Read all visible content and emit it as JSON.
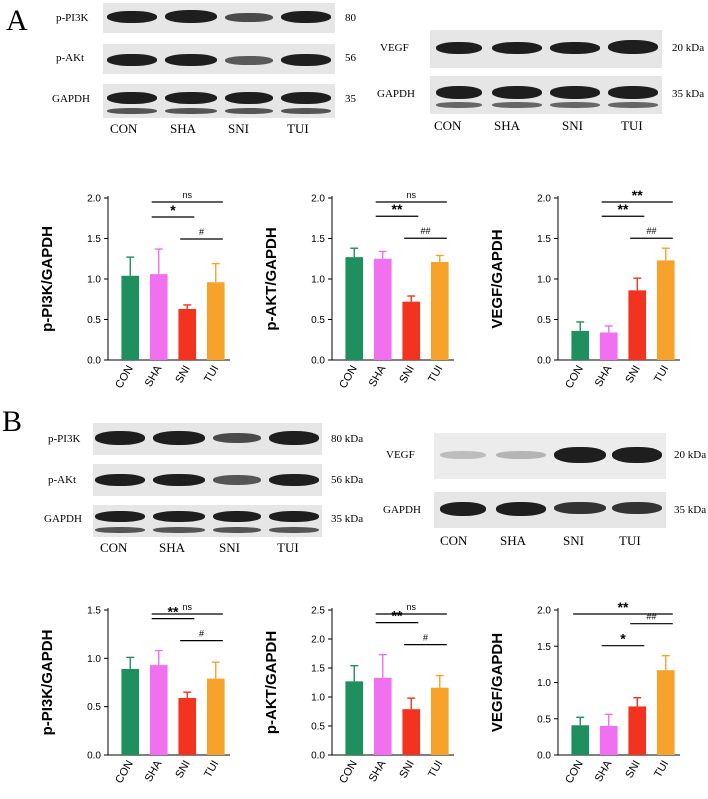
{
  "panelA": {
    "letter": "A",
    "blot_left": {
      "rows": [
        {
          "label": "p-PI3K",
          "size": "80"
        },
        {
          "label": "p-AKt",
          "size": "56"
        },
        {
          "label": "GAPDH",
          "size": "35"
        }
      ],
      "lanes": [
        "CON",
        "SHA",
        "SNI",
        "TUI"
      ]
    },
    "blot_right": {
      "rows": [
        {
          "label": "VEGF",
          "size": "20 kDa"
        },
        {
          "label": "GAPDH",
          "size": "35 kDa"
        }
      ],
      "lanes": [
        "CON",
        "SHA",
        "SNI",
        "TUI"
      ]
    }
  },
  "panelB": {
    "letter": "B",
    "blot_left": {
      "rows": [
        {
          "label": "p-PI3K",
          "size": "80 kDa"
        },
        {
          "label": "p-AKt",
          "size": "56 kDa"
        },
        {
          "label": "GAPDH",
          "size": "35 kDa"
        }
      ],
      "lanes": [
        "CON",
        "SHA",
        "SNI",
        "TUI"
      ]
    },
    "blot_right": {
      "rows": [
        {
          "label": "VEGF",
          "size": "20 kDa"
        },
        {
          "label": "GAPDH",
          "size": "35 kDa"
        }
      ],
      "lanes": [
        "CON",
        "SHA",
        "SNI",
        "TUI"
      ]
    }
  },
  "chart_data": [
    {
      "type": "bar",
      "panel": "A",
      "ylabel": "p-PI3K/GAPDH",
      "categories": [
        "CON",
        "SHA",
        "SNI",
        "TUI"
      ],
      "values": [
        1.04,
        1.06,
        0.63,
        0.96
      ],
      "errors": [
        0.23,
        0.31,
        0.05,
        0.23
      ],
      "colors": [
        "#1f8f5f",
        "#f070f0",
        "#f2331f",
        "#f7a22b"
      ],
      "ylim": [
        0,
        2.0
      ],
      "yticks": [
        "0.0",
        "0.5",
        "1.0",
        "1.5",
        "2.0"
      ],
      "comparisons": [
        {
          "from": 1,
          "to": 3,
          "text": "ns",
          "level": 2
        },
        {
          "from": 1,
          "to": 2,
          "text": "*",
          "level": 1
        },
        {
          "from": 2,
          "to": 3,
          "text": "#",
          "level": 0
        }
      ]
    },
    {
      "type": "bar",
      "panel": "A",
      "ylabel": "p-AKT/GAPDH",
      "categories": [
        "CON",
        "SHA",
        "SNI",
        "TUI"
      ],
      "values": [
        1.27,
        1.25,
        0.72,
        1.21
      ],
      "errors": [
        0.11,
        0.09,
        0.07,
        0.08
      ],
      "colors": [
        "#1f8f5f",
        "#f070f0",
        "#f2331f",
        "#f7a22b"
      ],
      "ylim": [
        0,
        2.0
      ],
      "yticks": [
        "0.0",
        "0.5",
        "1.0",
        "1.5",
        "2.0"
      ],
      "comparisons": [
        {
          "from": 1,
          "to": 3,
          "text": "ns",
          "level": 2
        },
        {
          "from": 1,
          "to": 2,
          "text": "**",
          "level": 1
        },
        {
          "from": 2,
          "to": 3,
          "text": "##",
          "level": 0
        }
      ]
    },
    {
      "type": "bar",
      "panel": "A",
      "ylabel": "VEGF/GAPDH",
      "categories": [
        "CON",
        "SHA",
        "SNI",
        "TUI"
      ],
      "values": [
        0.36,
        0.34,
        0.86,
        1.23
      ],
      "errors": [
        0.11,
        0.08,
        0.15,
        0.15
      ],
      "colors": [
        "#1f8f5f",
        "#f070f0",
        "#f2331f",
        "#f7a22b"
      ],
      "ylim": [
        0,
        2.0
      ],
      "yticks": [
        "0.0",
        "0.5",
        "1.0",
        "1.5",
        "2.0"
      ],
      "comparisons": [
        {
          "from": 1,
          "to": 3,
          "text": "**",
          "level": 2
        },
        {
          "from": 1,
          "to": 2,
          "text": "**",
          "level": 1
        },
        {
          "from": 2,
          "to": 3,
          "text": "##",
          "level": 0
        }
      ]
    },
    {
      "type": "bar",
      "panel": "B",
      "ylabel": "p-PI3K/GAPDH",
      "categories": [
        "CON",
        "SHA",
        "SNI",
        "TUI"
      ],
      "values": [
        0.89,
        0.93,
        0.59,
        0.79
      ],
      "errors": [
        0.12,
        0.15,
        0.06,
        0.17
      ],
      "colors": [
        "#1f8f5f",
        "#f070f0",
        "#f2331f",
        "#f7a22b"
      ],
      "ylim": [
        0,
        1.5
      ],
      "yticks": [
        "0.0",
        "0.5",
        "1.0",
        "1.5"
      ],
      "comparisons": [
        {
          "from": 1,
          "to": 3,
          "text": "ns",
          "level": 2
        },
        {
          "from": 1,
          "to": 2,
          "text": "**",
          "level": 1
        },
        {
          "from": 2,
          "to": 3,
          "text": "#",
          "level": 0
        }
      ]
    },
    {
      "type": "bar",
      "panel": "B",
      "ylabel": "p-AKT/GAPDH",
      "categories": [
        "CON",
        "SHA",
        "SNI",
        "TUI"
      ],
      "values": [
        1.27,
        1.33,
        0.79,
        1.16
      ],
      "errors": [
        0.27,
        0.4,
        0.19,
        0.21
      ],
      "colors": [
        "#1f8f5f",
        "#f070f0",
        "#f2331f",
        "#f7a22b"
      ],
      "ylim": [
        0,
        2.5
      ],
      "yticks": [
        "0.0",
        "0.5",
        "1.0",
        "1.5",
        "2.0",
        "2.5"
      ],
      "comparisons": [
        {
          "from": 1,
          "to": 3,
          "text": "ns",
          "level": 2
        },
        {
          "from": 1,
          "to": 2,
          "text": "**",
          "level": 1
        },
        {
          "from": 2,
          "to": 3,
          "text": "#",
          "level": 0
        }
      ]
    },
    {
      "type": "bar",
      "panel": "B",
      "ylabel": "VEGF/GAPDH",
      "categories": [
        "CON",
        "SHA",
        "SNI",
        "TUI"
      ],
      "values": [
        0.41,
        0.4,
        0.67,
        1.17
      ],
      "errors": [
        0.11,
        0.16,
        0.12,
        0.2
      ],
      "colors": [
        "#1f8f5f",
        "#f070f0",
        "#f2331f",
        "#f7a22b"
      ],
      "ylim": [
        0,
        2.0
      ],
      "yticks": [
        "0.0",
        "0.5",
        "1.0",
        "1.5",
        "2.0"
      ],
      "comparisons": [
        {
          "from": 0,
          "to": 3,
          "text": "**",
          "level": 2
        },
        {
          "from": 2,
          "to": 3,
          "text": "##",
          "level": 1
        },
        {
          "from": 1,
          "to": 2,
          "text": "*",
          "level": 0
        }
      ]
    }
  ]
}
